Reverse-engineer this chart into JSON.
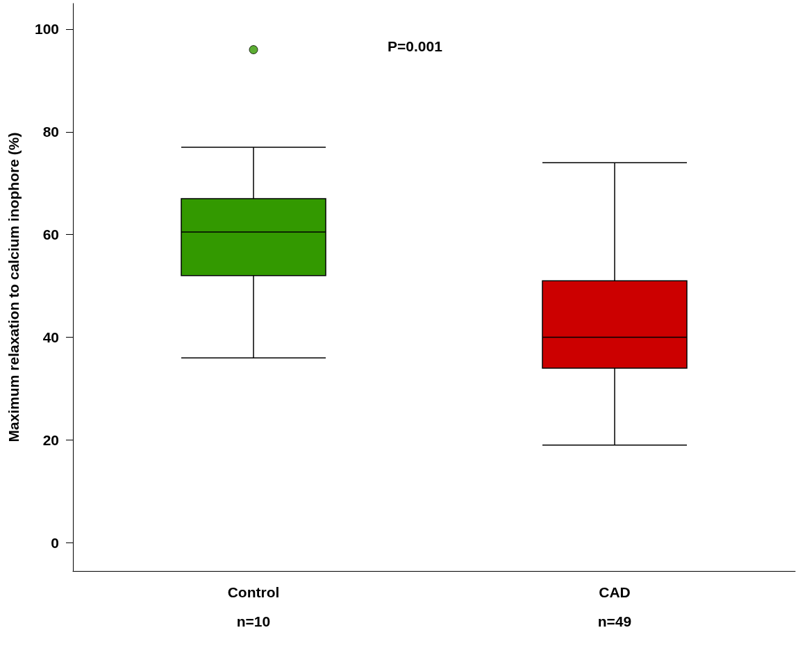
{
  "chart_data": {
    "type": "box",
    "ylabel": "Maximum relaxation to calcium inophore (%)",
    "categories": [
      "Control",
      "CAD"
    ],
    "colors": [
      "#339900",
      "#cc0000"
    ],
    "boxes": [
      {
        "low": 36,
        "q1": 52,
        "median": 60.5,
        "q3": 67,
        "high": 77,
        "outliers": [
          96
        ]
      },
      {
        "low": 19,
        "q1": 34,
        "median": 40,
        "q3": 51,
        "high": 74
      }
    ],
    "ylim": [
      -5.5,
      105
    ],
    "yticks": [
      0,
      20,
      40,
      60,
      80,
      100
    ],
    "grid": false,
    "annotations": [
      "P=0.001",
      "n=10",
      "n=49"
    ]
  }
}
